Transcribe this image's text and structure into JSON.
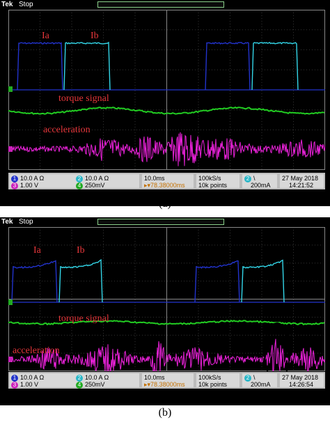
{
  "panel_a": {
    "caption": "(a)",
    "brand": "Tek",
    "mode": "Stop",
    "labels": {
      "ia": "Ia",
      "ib": "Ib",
      "torque": "torque signal",
      "accel": "acceleration"
    },
    "status": {
      "ch1": {
        "num": "1",
        "val": "10.0 A",
        "flag": "Ω"
      },
      "ch2": {
        "num": "2",
        "val": "10.0 A",
        "flag": "Ω"
      },
      "ch3": {
        "num": "3",
        "val": "1.00 V"
      },
      "ch4": {
        "num": "4",
        "val": "250mV"
      },
      "timebase": "10.0ms",
      "trig_pos": "78.38000ms",
      "rate": "100kS/s",
      "points": "10k points",
      "trig_ch": "2",
      "trig_level": "200mA",
      "date": "27 May 2018",
      "time": "14:21:52"
    }
  },
  "panel_b": {
    "caption": "(b)",
    "brand": "Tek",
    "mode": "Stop",
    "labels": {
      "ia": "Ia",
      "ib": "Ib",
      "torque": "torque signal",
      "accel": "acceleration"
    },
    "status": {
      "ch1": {
        "num": "1",
        "val": "10.0 A",
        "flag": "Ω"
      },
      "ch2": {
        "num": "2",
        "val": "10.0 A",
        "flag": "Ω"
      },
      "ch3": {
        "num": "3",
        "val": "1.00 V"
      },
      "ch4": {
        "num": "4",
        "val": "250mV"
      },
      "timebase": "10.0ms",
      "trig_pos": "78.38000ms",
      "rate": "100kS/s",
      "points": "10k points",
      "trig_ch": "2",
      "trig_level": "200mA",
      "date": "27 May 2018",
      "time": "14:26:54"
    }
  },
  "colors": {
    "ia": "#2233cc",
    "ib": "#33d6e8",
    "torque": "#22cc22",
    "accel": "#ee22dd",
    "label": "#e5363a"
  }
}
